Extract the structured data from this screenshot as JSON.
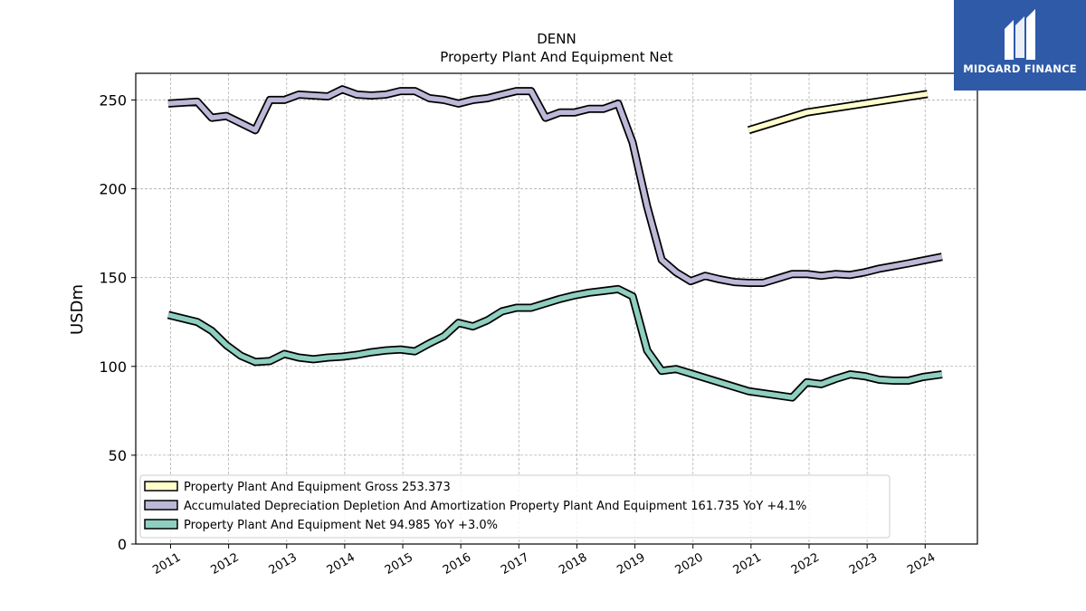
{
  "chart_data": {
    "type": "line",
    "title": "DENN",
    "subtitle": "Property Plant And Equipment Net",
    "ylabel": "USDm",
    "xlabel": "",
    "ylim": [
      0,
      265
    ],
    "xlim": [
      2010.4,
      2024.9
    ],
    "yticks": [
      0,
      50,
      100,
      150,
      200,
      250
    ],
    "xticks": [
      2011,
      2012,
      2013,
      2014,
      2015,
      2016,
      2017,
      2018,
      2019,
      2020,
      2021,
      2022,
      2023,
      2024
    ],
    "grid": true,
    "legend_position": "lower-left",
    "series": [
      {
        "name": "Property Plant And Equipment Gross",
        "legend_label": "Property Plant And Equipment Gross  253.373",
        "color": "#ffffcc",
        "points": [
          [
            2020.96,
            233
          ],
          [
            2021.96,
            243
          ],
          [
            2024.04,
            253.4
          ]
        ]
      },
      {
        "name": "Accumulated Depreciation Depletion And Amortization Property Plant And Equipment",
        "legend_label": "Accumulated Depreciation Depletion And Amortization Property Plant And Equipment  161.735 YoY +4.1%",
        "color": "#bcb8d8",
        "points": [
          [
            2010.96,
            248
          ],
          [
            2011.46,
            249
          ],
          [
            2011.71,
            240
          ],
          [
            2011.96,
            241
          ],
          [
            2012.46,
            233
          ],
          [
            2012.71,
            250
          ],
          [
            2012.96,
            250
          ],
          [
            2013.21,
            253
          ],
          [
            2013.71,
            252
          ],
          [
            2013.96,
            256
          ],
          [
            2014.21,
            253
          ],
          [
            2014.46,
            252.5
          ],
          [
            2014.71,
            253
          ],
          [
            2014.96,
            255
          ],
          [
            2015.21,
            255
          ],
          [
            2015.46,
            251
          ],
          [
            2015.71,
            250
          ],
          [
            2015.96,
            248
          ],
          [
            2016.21,
            250
          ],
          [
            2016.46,
            251
          ],
          [
            2016.71,
            253
          ],
          [
            2016.96,
            255
          ],
          [
            2017.21,
            255
          ],
          [
            2017.46,
            240
          ],
          [
            2017.71,
            243
          ],
          [
            2017.96,
            243
          ],
          [
            2018.21,
            245
          ],
          [
            2018.46,
            245
          ],
          [
            2018.71,
            248
          ],
          [
            2018.96,
            226
          ],
          [
            2019.21,
            190
          ],
          [
            2019.46,
            160
          ],
          [
            2019.71,
            153
          ],
          [
            2019.96,
            148
          ],
          [
            2020.21,
            151
          ],
          [
            2020.46,
            149
          ],
          [
            2020.71,
            147.5
          ],
          [
            2020.96,
            147
          ],
          [
            2021.21,
            147
          ],
          [
            2021.46,
            149.5
          ],
          [
            2021.71,
            152
          ],
          [
            2021.96,
            152
          ],
          [
            2022.21,
            151
          ],
          [
            2022.46,
            152
          ],
          [
            2022.71,
            151.5
          ],
          [
            2022.96,
            153
          ],
          [
            2023.21,
            155
          ],
          [
            2023.46,
            156.5
          ],
          [
            2023.71,
            158
          ],
          [
            2024.29,
            161.7
          ]
        ]
      },
      {
        "name": "Property Plant And Equipment Net",
        "legend_label": "Property Plant And Equipment Net  94.985 YoY +3.0%",
        "color": "#8ecfc0",
        "points": [
          [
            2010.96,
            129
          ],
          [
            2011.46,
            125
          ],
          [
            2011.71,
            120
          ],
          [
            2011.96,
            112
          ],
          [
            2012.21,
            106
          ],
          [
            2012.46,
            102.5
          ],
          [
            2012.71,
            103
          ],
          [
            2012.96,
            107
          ],
          [
            2013.21,
            105
          ],
          [
            2013.46,
            104
          ],
          [
            2013.71,
            105
          ],
          [
            2013.96,
            105.5
          ],
          [
            2014.21,
            106.5
          ],
          [
            2014.46,
            108
          ],
          [
            2014.71,
            109
          ],
          [
            2014.96,
            109.5
          ],
          [
            2015.21,
            108.5
          ],
          [
            2015.46,
            113
          ],
          [
            2015.71,
            117
          ],
          [
            2015.96,
            124.5
          ],
          [
            2016.21,
            122.5
          ],
          [
            2016.46,
            126
          ],
          [
            2016.71,
            131
          ],
          [
            2016.96,
            133
          ],
          [
            2017.21,
            133
          ],
          [
            2017.46,
            135.5
          ],
          [
            2017.71,
            138
          ],
          [
            2017.96,
            140
          ],
          [
            2018.21,
            141.5
          ],
          [
            2018.46,
            142.5
          ],
          [
            2018.71,
            143.5
          ],
          [
            2018.96,
            139.5
          ],
          [
            2019.21,
            109
          ],
          [
            2019.46,
            97.5
          ],
          [
            2019.71,
            98.5
          ],
          [
            2019.96,
            96
          ],
          [
            2020.96,
            86
          ],
          [
            2021.71,
            82.5
          ],
          [
            2021.96,
            91
          ],
          [
            2022.21,
            90
          ],
          [
            2022.46,
            93
          ],
          [
            2022.71,
            95.5
          ],
          [
            2022.96,
            94.5
          ],
          [
            2023.21,
            92.5
          ],
          [
            2023.46,
            92
          ],
          [
            2023.71,
            92
          ],
          [
            2023.96,
            94
          ],
          [
            2024.29,
            95.5
          ]
        ]
      }
    ]
  },
  "logo": {
    "text": "MIDGARD FINANCE",
    "color": "#2e5aa8"
  }
}
